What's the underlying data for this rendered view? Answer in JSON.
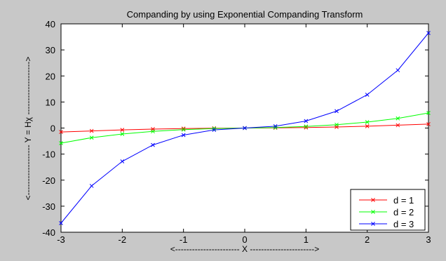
{
  "chart_data": {
    "type": "line",
    "title": "Companding by using Exponential Companding Transform",
    "xlabel": "<----------------------- X ----------------------->",
    "ylabel": "<------------------ Y = Hχ ------------------->",
    "xlim": [
      -3,
      3
    ],
    "ylim": [
      -40,
      40
    ],
    "xticks": [
      -3,
      -2,
      -1,
      0,
      1,
      2,
      3
    ],
    "yticks": [
      -40,
      -30,
      -20,
      -10,
      0,
      10,
      20,
      30,
      40
    ],
    "grid": false,
    "legend_position": "bottom-right",
    "marker": "x",
    "x": [
      -3,
      -2.5,
      -2,
      -1.5,
      -1,
      -0.5,
      0,
      0.5,
      1,
      1.5,
      2,
      2.5,
      3
    ],
    "series": [
      {
        "name": "d = 1",
        "color": "#ff0000",
        "values": [
          -1.5,
          -1.1,
          -0.7,
          -0.4,
          -0.2,
          -0.05,
          0,
          0.05,
          0.2,
          0.4,
          0.7,
          1.1,
          1.5
        ]
      },
      {
        "name": "d = 2",
        "color": "#00ff00",
        "values": [
          -5.8,
          -3.7,
          -2.3,
          -1.3,
          -0.6,
          -0.2,
          0,
          0.2,
          0.6,
          1.3,
          2.3,
          3.7,
          5.8
        ]
      },
      {
        "name": "d = 3",
        "color": "#0000ff",
        "values": [
          -36.5,
          -22.2,
          -12.8,
          -6.5,
          -2.7,
          -0.7,
          0,
          0.7,
          2.7,
          6.5,
          12.8,
          22.2,
          36.5
        ]
      }
    ]
  }
}
